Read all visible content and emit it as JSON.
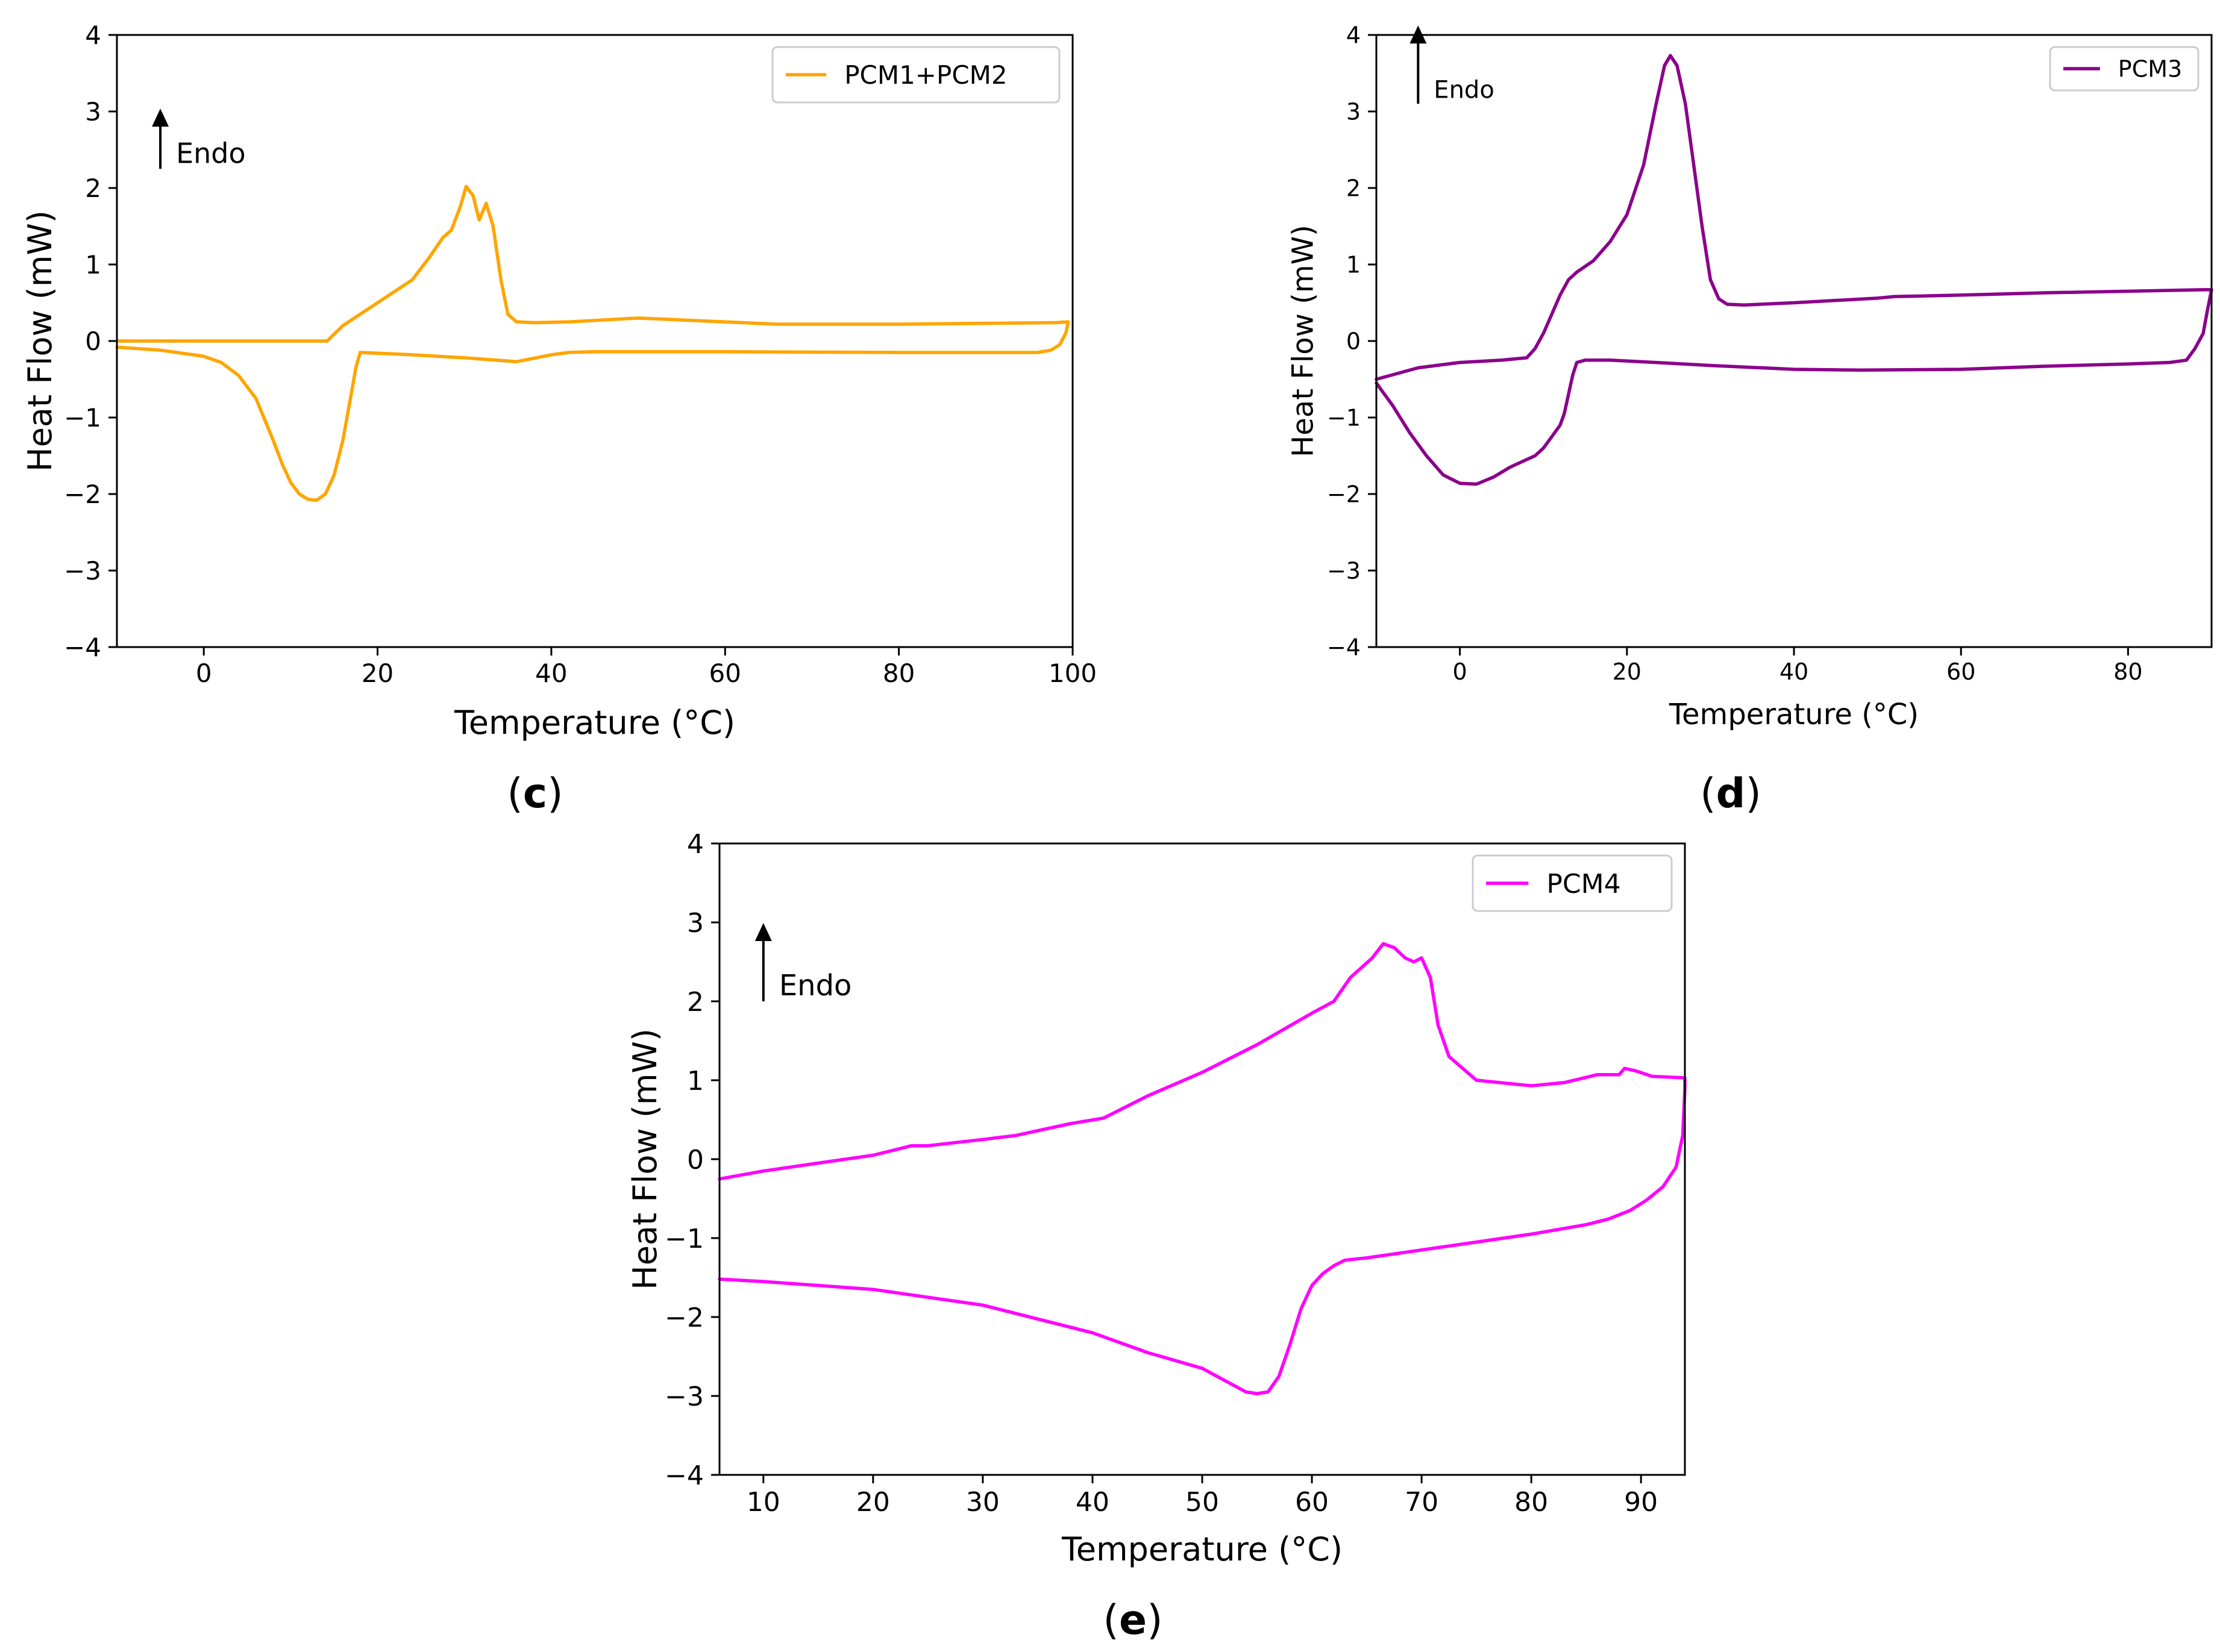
{
  "chart_data": [
    {
      "id": "c",
      "type": "line",
      "panel_label": "c",
      "xlabel": "Temperature (°C)",
      "ylabel": "Heat Flow (mW)",
      "xlim": [
        -10,
        100
      ],
      "ylim": [
        -4,
        4
      ],
      "xticks": [
        0,
        20,
        40,
        60,
        80,
        100
      ],
      "yticks": [
        -4,
        -3,
        -2,
        -1,
        0,
        1,
        2,
        3,
        4
      ],
      "grid": false,
      "legend_position": "top-right",
      "annotation": "Endo",
      "annotation_at": [
        -5,
        2.25
      ],
      "series": [
        {
          "name": "PCM1+PCM2",
          "color": "#FFA500",
          "x": [
            -10,
            0,
            10,
            14.2,
            16,
            20,
            24,
            26,
            27.5,
            28.5,
            29.5,
            30.2,
            31,
            31.7,
            32.5,
            33.3,
            34.2,
            35,
            36,
            38,
            42,
            50,
            58,
            66,
            80,
            98,
            99.5,
            99.2,
            98.5,
            97.5,
            96,
            80,
            60,
            45,
            42,
            40,
            36,
            30,
            24,
            18,
            17.5,
            16.8,
            16,
            15,
            14,
            13,
            12,
            11,
            10,
            9,
            8,
            6,
            4,
            2,
            0,
            -5,
            -10
          ],
          "y": [
            0,
            0,
            0,
            0,
            0.2,
            0.5,
            0.8,
            1.1,
            1.35,
            1.45,
            1.75,
            2.02,
            1.9,
            1.58,
            1.8,
            1.5,
            0.8,
            0.35,
            0.25,
            0.24,
            0.25,
            0.3,
            0.26,
            0.22,
            0.22,
            0.24,
            0.25,
            0.1,
            -0.05,
            -0.12,
            -0.15,
            -0.15,
            -0.14,
            -0.14,
            -0.15,
            -0.18,
            -0.27,
            -0.22,
            -0.18,
            -0.15,
            -0.35,
            -0.8,
            -1.3,
            -1.75,
            -2.0,
            -2.08,
            -2.07,
            -2.0,
            -1.85,
            -1.6,
            -1.3,
            -0.75,
            -0.45,
            -0.28,
            -0.2,
            -0.12,
            -0.08
          ]
        }
      ]
    },
    {
      "id": "d",
      "type": "line",
      "panel_label": "d",
      "xlabel": "Temperature (°C)",
      "ylabel": "Heat Flow (mW)",
      "xlim": [
        -10,
        90
      ],
      "ylim": [
        -4,
        4
      ],
      "xticks": [
        0,
        20,
        40,
        60,
        80
      ],
      "yticks": [
        -4,
        -3,
        -2,
        -1,
        0,
        1,
        2,
        3,
        4
      ],
      "grid": false,
      "legend_position": "top-right",
      "annotation": "Endo",
      "annotation_at": [
        -5,
        3.1
      ],
      "series": [
        {
          "name": "PCM3",
          "color": "#8B008B",
          "x": [
            -10,
            -5,
            0,
            5,
            8,
            9,
            10,
            11,
            12,
            13,
            14,
            16,
            18,
            20,
            22,
            23.5,
            24.5,
            25.2,
            26,
            27,
            28,
            29,
            30,
            31,
            32,
            34,
            40,
            50,
            52,
            60,
            70,
            80,
            89,
            90,
            89.5,
            89,
            88,
            87,
            85,
            80,
            70,
            60,
            48,
            40,
            30,
            25,
            18,
            15,
            14,
            13.5,
            13,
            12.5,
            12,
            11,
            10,
            9,
            8,
            6,
            4,
            2,
            0,
            -2,
            -4,
            -6,
            -8,
            -10
          ],
          "y": [
            -0.5,
            -0.35,
            -0.28,
            -0.25,
            -0.22,
            -0.1,
            0.1,
            0.35,
            0.6,
            0.8,
            0.9,
            1.05,
            1.3,
            1.65,
            2.3,
            3.1,
            3.6,
            3.73,
            3.6,
            3.1,
            2.3,
            1.5,
            0.8,
            0.55,
            0.48,
            0.47,
            0.5,
            0.56,
            0.58,
            0.6,
            0.63,
            0.65,
            0.67,
            0.67,
            0.4,
            0.1,
            -0.1,
            -0.25,
            -0.28,
            -0.3,
            -0.33,
            -0.37,
            -0.38,
            -0.37,
            -0.32,
            -0.29,
            -0.25,
            -0.25,
            -0.28,
            -0.45,
            -0.7,
            -0.95,
            -1.1,
            -1.25,
            -1.4,
            -1.5,
            -1.55,
            -1.65,
            -1.78,
            -1.87,
            -1.86,
            -1.75,
            -1.5,
            -1.2,
            -0.85,
            -0.55
          ]
        }
      ]
    },
    {
      "id": "e",
      "type": "line",
      "panel_label": "e",
      "xlabel": "Temperature (°C)",
      "ylabel": "Heat Flow (mW)",
      "xlim": [
        6,
        94
      ],
      "ylim": [
        -4,
        4
      ],
      "xticks": [
        10,
        20,
        30,
        40,
        50,
        60,
        70,
        80,
        90
      ],
      "yticks": [
        -4,
        -3,
        -2,
        -1,
        0,
        1,
        2,
        3,
        4
      ],
      "grid": false,
      "legend_position": "top-right",
      "annotation": "Endo",
      "annotation_at": [
        10,
        2.0
      ],
      "series": [
        {
          "name": "PCM4",
          "color": "#FF00FF",
          "x": [
            6,
            10,
            15,
            20,
            23.5,
            25,
            30,
            33,
            38,
            41,
            45,
            50,
            55,
            60,
            62,
            63.5,
            65.5,
            66.5,
            67.5,
            68.5,
            69.3,
            70,
            70.8,
            71.5,
            72.5,
            75,
            80,
            83,
            86,
            88,
            88.5,
            89.5,
            91,
            94,
            94,
            93.8,
            93.2,
            92,
            90.5,
            89,
            87,
            85,
            80,
            75,
            70,
            65,
            63,
            62,
            61,
            60,
            59,
            58,
            57,
            56,
            55,
            54,
            52,
            50,
            45,
            40,
            30,
            20,
            10,
            6
          ],
          "y": [
            -0.25,
            -0.15,
            -0.05,
            0.05,
            0.17,
            0.17,
            0.25,
            0.3,
            0.45,
            0.52,
            0.8,
            1.1,
            1.45,
            1.85,
            2.0,
            2.3,
            2.55,
            2.73,
            2.68,
            2.55,
            2.5,
            2.55,
            2.3,
            1.7,
            1.3,
            1.0,
            0.93,
            0.97,
            1.07,
            1.07,
            1.15,
            1.12,
            1.05,
            1.03,
            0.9,
            0.3,
            -0.1,
            -0.35,
            -0.52,
            -0.65,
            -0.76,
            -0.83,
            -0.95,
            -1.05,
            -1.15,
            -1.25,
            -1.28,
            -1.35,
            -1.45,
            -1.6,
            -1.9,
            -2.35,
            -2.75,
            -2.95,
            -2.97,
            -2.95,
            -2.8,
            -2.65,
            -2.45,
            -2.2,
            -1.85,
            -1.65,
            -1.55,
            -1.52
          ]
        }
      ]
    }
  ]
}
